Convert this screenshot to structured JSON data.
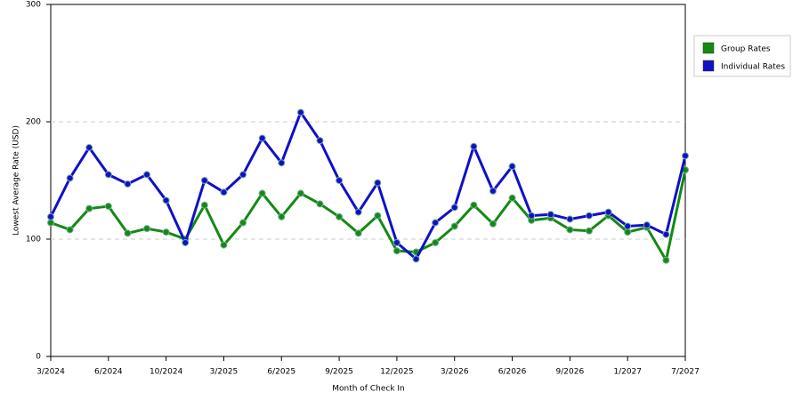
{
  "chart_data": {
    "type": "line",
    "x_label": "Month of Check In",
    "y_label": "Lowest Average Rate (USD)",
    "categories": [
      "3/2024",
      null,
      null,
      "6/2024",
      null,
      null,
      "10/2024",
      null,
      null,
      "3/2025",
      null,
      null,
      "6/2025",
      null,
      null,
      "9/2025",
      null,
      null,
      "12/2025",
      null,
      null,
      "3/2026",
      null,
      null,
      "6/2026",
      null,
      null,
      "9/2026",
      null,
      null,
      "1/2027",
      null,
      null,
      "7/2027"
    ],
    "series": [
      {
        "name": "Group Rates",
        "color": "#138a13",
        "values": [
          114,
          108,
          126,
          128,
          105,
          109,
          106,
          100,
          129,
          95,
          114,
          139,
          119,
          139,
          130,
          119,
          105,
          120,
          90,
          89,
          97,
          111,
          129,
          113,
          135,
          116,
          118,
          108,
          107,
          120,
          106,
          110,
          82,
          159
        ]
      },
      {
        "name": "Individual Rates",
        "color": "#1010c8",
        "values": [
          119,
          152,
          178,
          155,
          147,
          155,
          133,
          97,
          150,
          140,
          155,
          186,
          165,
          208,
          184,
          150,
          123,
          148,
          97,
          83,
          114,
          127,
          179,
          141,
          162,
          120,
          121,
          117,
          120,
          123,
          111,
          112,
          104,
          171
        ]
      }
    ],
    "ylim": [
      0,
      300
    ],
    "yticks": [
      0,
      100,
      200,
      300
    ],
    "grid": true,
    "legend": "right"
  }
}
